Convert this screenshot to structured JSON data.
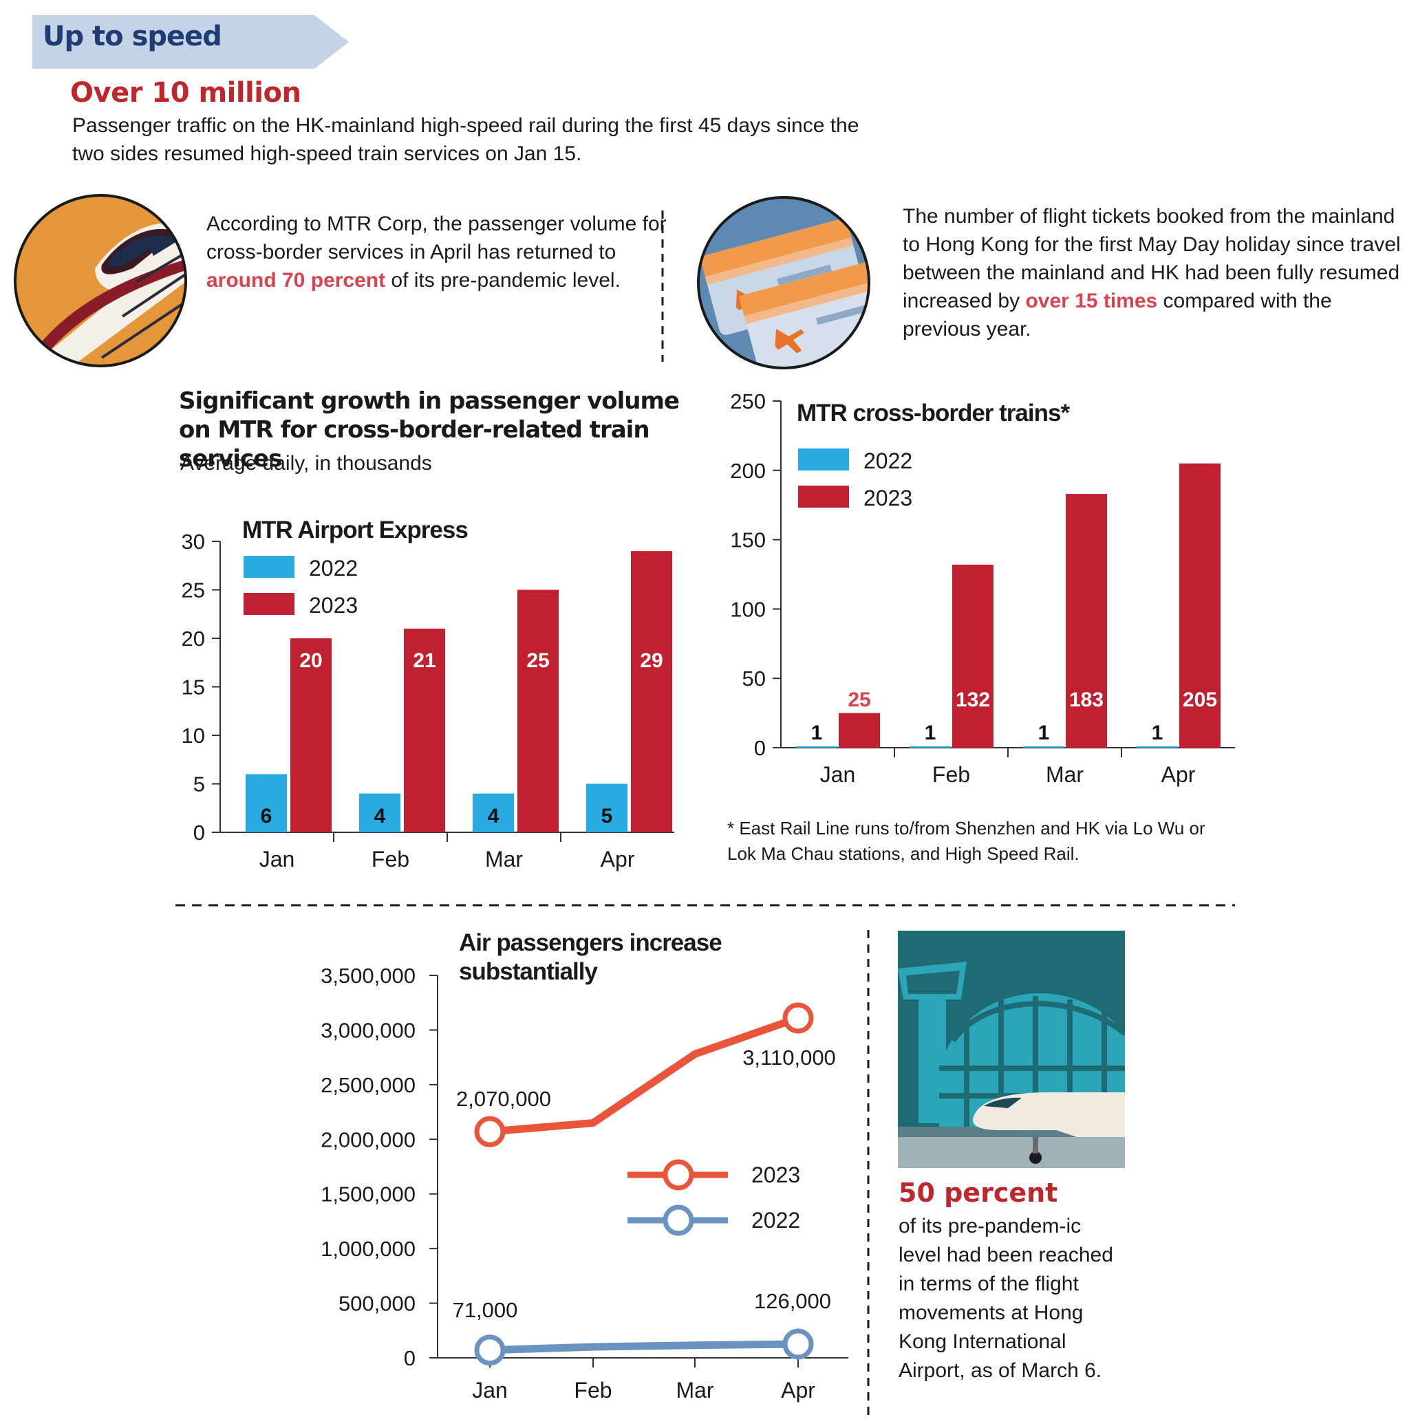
{
  "header": {
    "banner": "Up to speed",
    "headline": "Over 10 million",
    "headline_body": "Passenger traffic on the HK-mainland high-speed rail during the first 45 days since the two sides resumed high-speed train services on Jan 15."
  },
  "rail_note": {
    "pre": "According to MTR Corp, the passenger volume for cross-border services in April has returned to ",
    "highlight": "around 70 percent",
    "post": " of its pre-pandemic level."
  },
  "flight_note": {
    "pre": "The number of flight tickets booked from the mainland to Hong Kong for the first May Day holiday since travel between the mainland and HK had been fully resumed increased by ",
    "highlight": "over 15 times",
    "post": " compared with the previous year."
  },
  "bar_section": {
    "title": "Significant growth in passenger volume on MTR for cross-border-related train services",
    "subtitle": "Average daily, in thousands"
  },
  "footnote": "* East Rail Line runs to/from Shenzhen and HK via Lo Wu or Lok Ma Chau stations, and High Speed Rail.",
  "airport_caption": {
    "title": "50 percent",
    "body": "of its pre-pandem-ic level had been reached in terms of the flight movements at Hong Kong International Airport, as of March 6."
  },
  "colors": {
    "y2022_bar": "#29abe2",
    "y2023_bar": "#c0202f",
    "line_2023": "#e8553a",
    "line_2022": "#6a94bf",
    "headline_red": "#c0272d",
    "highlight_red": "#d9434f",
    "banner_bg": "#c5d3e6",
    "banner_text": "#1f3d73"
  },
  "icons": [
    "high-speed-train-icon",
    "flight-tickets-icon",
    "airport-terminal-illustration"
  ],
  "chart_data": [
    {
      "type": "bar",
      "title": "MTR Airport Express",
      "categories": [
        "Jan",
        "Feb",
        "Mar",
        "Apr"
      ],
      "series": [
        {
          "name": "2022",
          "values": [
            6,
            4,
            4,
            5
          ]
        },
        {
          "name": "2023",
          "values": [
            20,
            21,
            25,
            29
          ]
        }
      ],
      "data_labels": {
        "2022": [
          "6",
          "4",
          "4",
          "5"
        ],
        "2023": [
          "20",
          "21",
          "25",
          "29"
        ]
      },
      "ylim": [
        0,
        30
      ],
      "yticks": [
        0,
        5,
        10,
        15,
        20,
        25,
        30
      ],
      "legend": "top-left"
    },
    {
      "type": "bar",
      "title": "MTR cross-border trains*",
      "categories": [
        "Jan",
        "Feb",
        "Mar",
        "Apr"
      ],
      "series": [
        {
          "name": "2022",
          "values": [
            1,
            1,
            1,
            1
          ]
        },
        {
          "name": "2023",
          "values": [
            25,
            132,
            183,
            205
          ]
        }
      ],
      "data_labels": {
        "2022": [
          "1",
          "1",
          "1",
          "1"
        ],
        "2023": [
          "25",
          "132",
          "183",
          "205"
        ]
      },
      "ylim": [
        0,
        250
      ],
      "yticks": [
        0,
        50,
        100,
        150,
        200,
        250
      ],
      "legend": "top-left"
    },
    {
      "type": "line",
      "title": "Air passengers increase substantially",
      "categories": [
        "Jan",
        "Feb",
        "Mar",
        "Apr"
      ],
      "series": [
        {
          "name": "2023",
          "values": [
            2070000,
            2150000,
            2780000,
            3110000
          ]
        },
        {
          "name": "2022",
          "values": [
            71000,
            100000,
            115000,
            126000
          ]
        }
      ],
      "point_labels": {
        "2023": [
          "2,070,000",
          "3,110,000"
        ],
        "2022": [
          "71,000",
          "126,000"
        ]
      },
      "ylim": [
        0,
        3500000
      ],
      "yticks": [
        "0",
        "500,000",
        "1,000,000",
        "1,500,000",
        "2,000,000",
        "2,500,000",
        "3,000,000",
        "3,500,000"
      ],
      "legend": "center-right"
    }
  ]
}
